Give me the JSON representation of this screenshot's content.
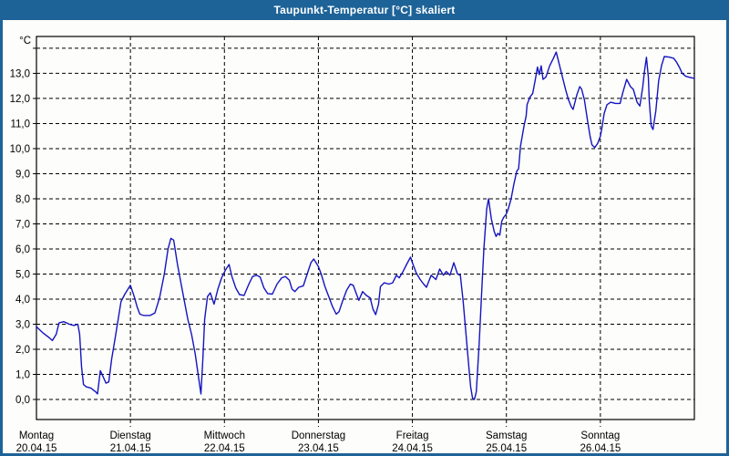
{
  "window": {
    "title": "Taupunkt-Temperatur [°C] skaliert",
    "title_bar_color": "#1D6398",
    "border_color": "#1D6398",
    "background_color": "#FDFDFB"
  },
  "chart_data": {
    "type": "line",
    "title": "Taupunkt-Temperatur [°C] skaliert",
    "unit_label": "°C",
    "line_color": "#1414C0",
    "grid_color": "#000000",
    "text_color": "#000000",
    "legend_position": "none",
    "grid": "dashed",
    "y_axis": {
      "ylim": [
        -0.8,
        14.47
      ],
      "gridline_values": [
        0,
        1,
        2,
        3,
        4,
        5,
        6,
        7,
        8,
        9,
        10,
        11,
        12,
        13,
        14
      ],
      "tick_values": [
        0,
        1,
        2,
        3,
        4,
        5,
        6,
        7,
        8,
        9,
        10,
        11,
        12,
        13
      ],
      "tick_labels": [
        "0,0",
        "1,0",
        "2,0",
        "3,0",
        "4,0",
        "5,0",
        "6,0",
        "7,0",
        "8,0",
        "9,0",
        "10,0",
        "11,0",
        "12,0",
        "13,0"
      ]
    },
    "x_axis": {
      "xlim_days": [
        0,
        7
      ],
      "gridline_days": [
        1,
        2,
        3,
        4,
        5,
        6
      ],
      "days": [
        {
          "name": "Montag",
          "date": "20.04.15"
        },
        {
          "name": "Dienstag",
          "date": "21.04.15"
        },
        {
          "name": "Mittwoch",
          "date": "22.04.15"
        },
        {
          "name": "Donnerstag",
          "date": "23.04.15"
        },
        {
          "name": "Freitag",
          "date": "24.04.15"
        },
        {
          "name": "Samstag",
          "date": "25.04.15"
        },
        {
          "name": "Sonntag",
          "date": "26.04.15"
        }
      ]
    },
    "series": [
      {
        "name": "Taupunkt-Temperatur",
        "points": [
          [
            0.0,
            2.9
          ],
          [
            0.07,
            2.65
          ],
          [
            0.14,
            2.45
          ],
          [
            0.17,
            2.35
          ],
          [
            0.21,
            2.6
          ],
          [
            0.24,
            3.05
          ],
          [
            0.29,
            3.1
          ],
          [
            0.35,
            3.0
          ],
          [
            0.4,
            2.95
          ],
          [
            0.44,
            3.0
          ],
          [
            0.46,
            2.6
          ],
          [
            0.48,
            1.3
          ],
          [
            0.5,
            0.6
          ],
          [
            0.53,
            0.5
          ],
          [
            0.58,
            0.45
          ],
          [
            0.63,
            0.3
          ],
          [
            0.65,
            0.22
          ],
          [
            0.68,
            1.15
          ],
          [
            0.71,
            0.9
          ],
          [
            0.74,
            0.65
          ],
          [
            0.77,
            0.7
          ],
          [
            0.8,
            1.6
          ],
          [
            0.84,
            2.5
          ],
          [
            0.87,
            3.2
          ],
          [
            0.9,
            3.9
          ],
          [
            0.94,
            4.2
          ],
          [
            1.0,
            4.55
          ],
          [
            1.04,
            4.1
          ],
          [
            1.07,
            3.7
          ],
          [
            1.1,
            3.4
          ],
          [
            1.14,
            3.35
          ],
          [
            1.21,
            3.35
          ],
          [
            1.26,
            3.45
          ],
          [
            1.31,
            4.05
          ],
          [
            1.36,
            5.0
          ],
          [
            1.4,
            6.0
          ],
          [
            1.43,
            6.42
          ],
          [
            1.46,
            6.35
          ],
          [
            1.5,
            5.4
          ],
          [
            1.54,
            4.6
          ],
          [
            1.57,
            4.0
          ],
          [
            1.61,
            3.2
          ],
          [
            1.65,
            2.6
          ],
          [
            1.69,
            1.8
          ],
          [
            1.72,
            1.0
          ],
          [
            1.75,
            0.22
          ],
          [
            1.77,
            1.6
          ],
          [
            1.79,
            3.2
          ],
          [
            1.82,
            4.1
          ],
          [
            1.85,
            4.25
          ],
          [
            1.89,
            3.8
          ],
          [
            1.93,
            4.4
          ],
          [
            1.97,
            4.85
          ],
          [
            2.01,
            5.15
          ],
          [
            2.05,
            5.38
          ],
          [
            2.08,
            4.9
          ],
          [
            2.12,
            4.45
          ],
          [
            2.16,
            4.18
          ],
          [
            2.21,
            4.15
          ],
          [
            2.26,
            4.6
          ],
          [
            2.3,
            4.9
          ],
          [
            2.34,
            4.95
          ],
          [
            2.38,
            4.88
          ],
          [
            2.42,
            4.45
          ],
          [
            2.46,
            4.22
          ],
          [
            2.51,
            4.2
          ],
          [
            2.56,
            4.6
          ],
          [
            2.61,
            4.85
          ],
          [
            2.65,
            4.9
          ],
          [
            2.69,
            4.75
          ],
          [
            2.72,
            4.4
          ],
          [
            2.75,
            4.3
          ],
          [
            2.79,
            4.47
          ],
          [
            2.84,
            4.53
          ],
          [
            2.88,
            5.0
          ],
          [
            2.92,
            5.45
          ],
          [
            2.95,
            5.6
          ],
          [
            3.0,
            5.3
          ],
          [
            3.03,
            5.0
          ],
          [
            3.07,
            4.5
          ],
          [
            3.11,
            4.1
          ],
          [
            3.15,
            3.7
          ],
          [
            3.19,
            3.4
          ],
          [
            3.22,
            3.5
          ],
          [
            3.26,
            3.95
          ],
          [
            3.3,
            4.35
          ],
          [
            3.34,
            4.6
          ],
          [
            3.37,
            4.55
          ],
          [
            3.4,
            4.25
          ],
          [
            3.43,
            3.95
          ],
          [
            3.47,
            4.3
          ],
          [
            3.51,
            4.15
          ],
          [
            3.55,
            4.05
          ],
          [
            3.58,
            3.6
          ],
          [
            3.61,
            3.38
          ],
          [
            3.64,
            3.8
          ],
          [
            3.66,
            4.5
          ],
          [
            3.7,
            4.65
          ],
          [
            3.75,
            4.6
          ],
          [
            3.79,
            4.65
          ],
          [
            3.83,
            4.95
          ],
          [
            3.86,
            4.85
          ],
          [
            3.9,
            5.1
          ],
          [
            3.94,
            5.4
          ],
          [
            3.98,
            5.67
          ],
          [
            4.0,
            5.45
          ],
          [
            4.04,
            5.05
          ],
          [
            4.08,
            4.8
          ],
          [
            4.12,
            4.6
          ],
          [
            4.15,
            4.47
          ],
          [
            4.2,
            4.95
          ],
          [
            4.25,
            4.78
          ],
          [
            4.29,
            5.2
          ],
          [
            4.33,
            4.95
          ],
          [
            4.36,
            5.1
          ],
          [
            4.4,
            4.95
          ],
          [
            4.44,
            5.45
          ],
          [
            4.48,
            5.0
          ],
          [
            4.51,
            4.95
          ],
          [
            4.54,
            3.9
          ],
          [
            4.57,
            2.6
          ],
          [
            4.6,
            1.3
          ],
          [
            4.62,
            0.5
          ],
          [
            4.64,
            0.05
          ],
          [
            4.66,
            0.0
          ],
          [
            4.68,
            0.3
          ],
          [
            4.71,
            2.2
          ],
          [
            4.74,
            4.5
          ],
          [
            4.76,
            6.0
          ],
          [
            4.79,
            7.6
          ],
          [
            4.81,
            8.0
          ],
          [
            4.84,
            7.2
          ],
          [
            4.87,
            6.7
          ],
          [
            4.89,
            6.5
          ],
          [
            4.91,
            6.62
          ],
          [
            4.93,
            6.55
          ],
          [
            4.95,
            7.1
          ],
          [
            4.97,
            7.25
          ],
          [
            5.0,
            7.4
          ],
          [
            5.02,
            7.6
          ],
          [
            5.05,
            8.0
          ],
          [
            5.08,
            8.6
          ],
          [
            5.11,
            9.1
          ],
          [
            5.13,
            9.2
          ],
          [
            5.15,
            10.1
          ],
          [
            5.19,
            10.95
          ],
          [
            5.21,
            11.3
          ],
          [
            5.22,
            11.75
          ],
          [
            5.25,
            12.05
          ],
          [
            5.28,
            12.2
          ],
          [
            5.31,
            12.8
          ],
          [
            5.33,
            13.25
          ],
          [
            5.35,
            12.95
          ],
          [
            5.37,
            13.3
          ],
          [
            5.39,
            12.76
          ],
          [
            5.42,
            12.85
          ],
          [
            5.46,
            13.3
          ],
          [
            5.5,
            13.6
          ],
          [
            5.53,
            13.85
          ],
          [
            5.57,
            13.25
          ],
          [
            5.6,
            12.8
          ],
          [
            5.63,
            12.35
          ],
          [
            5.66,
            11.95
          ],
          [
            5.69,
            11.67
          ],
          [
            5.71,
            11.56
          ],
          [
            5.75,
            12.15
          ],
          [
            5.78,
            12.47
          ],
          [
            5.8,
            12.38
          ],
          [
            5.83,
            11.95
          ],
          [
            5.86,
            11.2
          ],
          [
            5.89,
            10.5
          ],
          [
            5.91,
            10.15
          ],
          [
            5.94,
            10.04
          ],
          [
            5.97,
            10.2
          ],
          [
            6.0,
            10.5
          ],
          [
            6.02,
            10.9
          ],
          [
            6.04,
            11.4
          ],
          [
            6.07,
            11.75
          ],
          [
            6.11,
            11.85
          ],
          [
            6.16,
            11.8
          ],
          [
            6.21,
            11.8
          ],
          [
            6.24,
            12.25
          ],
          [
            6.28,
            12.76
          ],
          [
            6.32,
            12.47
          ],
          [
            6.35,
            12.36
          ],
          [
            6.39,
            11.85
          ],
          [
            6.42,
            11.7
          ],
          [
            6.45,
            12.45
          ],
          [
            6.47,
            13.1
          ],
          [
            6.49,
            13.64
          ],
          [
            6.51,
            12.85
          ],
          [
            6.52,
            11.9
          ],
          [
            6.54,
            10.9
          ],
          [
            6.56,
            10.76
          ],
          [
            6.59,
            11.5
          ],
          [
            6.62,
            12.7
          ],
          [
            6.65,
            13.3
          ],
          [
            6.68,
            13.67
          ],
          [
            6.73,
            13.65
          ],
          [
            6.78,
            13.6
          ],
          [
            6.81,
            13.45
          ],
          [
            6.84,
            13.25
          ],
          [
            6.87,
            13.0
          ],
          [
            6.91,
            12.88
          ],
          [
            6.95,
            12.84
          ],
          [
            7.0,
            12.8
          ]
        ]
      }
    ]
  }
}
